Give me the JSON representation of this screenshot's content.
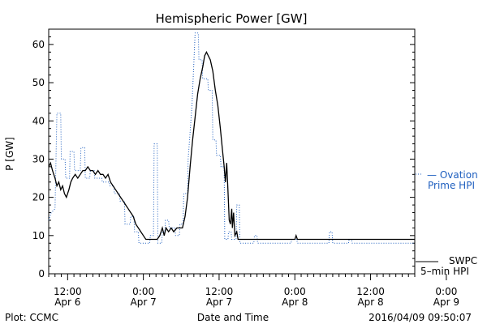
{
  "chart_data": {
    "type": "line",
    "title": "Hemispheric Power [GW]",
    "ylabel": "P [GW]",
    "xlabel": "Date and Time",
    "ylim": [
      0,
      64
    ],
    "yticks": [
      0,
      10,
      20,
      30,
      40,
      50,
      60
    ],
    "x_unit": "hours since 2016-04-06 00:00 UT",
    "xlim": [
      9.0,
      67.0
    ],
    "xticks": [
      {
        "x": 12,
        "line1": "12:00",
        "line2": "Apr 6"
      },
      {
        "x": 24,
        "line1": "0:00",
        "line2": "Apr 7"
      },
      {
        "x": 36,
        "line1": "12:00",
        "line2": "Apr 7"
      },
      {
        "x": 48,
        "line1": "0:00",
        "line2": "Apr 8"
      },
      {
        "x": 60,
        "line1": "12:00",
        "line2": "Apr 8"
      },
      {
        "x": 72,
        "line1": "0:00",
        "line2": "Apr 9"
      }
    ],
    "grid": false,
    "series": [
      {
        "name": "Ovation Prime HPI",
        "legend_line1": "— Ovation",
        "legend_line2": "Prime HPI",
        "color": "#1f5fbf",
        "style": "dotted-step",
        "points": [
          [
            9.0,
            14
          ],
          [
            9.4,
            16
          ],
          [
            10.0,
            17
          ],
          [
            10.3,
            42
          ],
          [
            10.9,
            42
          ],
          [
            11.0,
            30
          ],
          [
            11.6,
            30
          ],
          [
            11.7,
            25
          ],
          [
            12.3,
            25
          ],
          [
            12.4,
            32
          ],
          [
            13.0,
            32
          ],
          [
            13.1,
            27
          ],
          [
            14.0,
            27
          ],
          [
            14.1,
            33
          ],
          [
            14.7,
            33
          ],
          [
            14.8,
            25
          ],
          [
            15.5,
            25
          ],
          [
            15.6,
            27
          ],
          [
            16.2,
            27
          ],
          [
            16.3,
            25
          ],
          [
            17.4,
            25
          ],
          [
            17.5,
            24
          ],
          [
            18.6,
            24
          ],
          [
            18.7,
            23
          ],
          [
            19.3,
            23
          ],
          [
            19.4,
            21
          ],
          [
            20.2,
            21
          ],
          [
            20.3,
            19
          ],
          [
            21.0,
            19
          ],
          [
            21.1,
            13
          ],
          [
            21.9,
            13
          ],
          [
            22.0,
            15
          ],
          [
            22.5,
            15
          ],
          [
            22.6,
            11
          ],
          [
            23.2,
            11
          ],
          [
            23.3,
            8
          ],
          [
            25.0,
            8
          ],
          [
            25.1,
            10
          ],
          [
            25.6,
            10
          ],
          [
            25.7,
            34
          ],
          [
            26.2,
            34
          ],
          [
            26.3,
            8
          ],
          [
            26.9,
            8
          ],
          [
            27.0,
            11
          ],
          [
            27.4,
            11
          ],
          [
            27.5,
            14
          ],
          [
            28.0,
            14
          ],
          [
            28.1,
            12
          ],
          [
            29.0,
            12
          ],
          [
            29.1,
            10
          ],
          [
            29.7,
            10
          ],
          [
            29.8,
            13
          ],
          [
            30.3,
            13
          ],
          [
            30.4,
            21
          ],
          [
            31.0,
            21
          ],
          [
            31.1,
            30
          ],
          [
            31.4,
            37
          ],
          [
            31.7,
            44
          ],
          [
            32.0,
            55
          ],
          [
            32.2,
            63
          ],
          [
            32.7,
            63
          ],
          [
            32.8,
            56
          ],
          [
            33.3,
            56
          ],
          [
            33.4,
            51
          ],
          [
            34.2,
            51
          ],
          [
            34.3,
            48
          ],
          [
            34.9,
            48
          ],
          [
            35.0,
            35
          ],
          [
            35.5,
            35
          ],
          [
            35.6,
            31
          ],
          [
            36.2,
            31
          ],
          [
            36.3,
            28
          ],
          [
            36.8,
            28
          ],
          [
            36.9,
            9
          ],
          [
            37.4,
            9
          ],
          [
            37.5,
            11
          ],
          [
            37.9,
            11
          ],
          [
            38.0,
            9
          ],
          [
            38.7,
            9
          ],
          [
            38.8,
            18
          ],
          [
            39.2,
            18
          ],
          [
            39.3,
            8
          ],
          [
            41.5,
            8
          ],
          [
            41.6,
            10
          ],
          [
            42.0,
            10
          ],
          [
            42.1,
            8
          ],
          [
            47.4,
            8
          ],
          [
            47.5,
            9
          ],
          [
            48.3,
            9
          ],
          [
            48.4,
            8
          ],
          [
            53.4,
            8
          ],
          [
            53.5,
            11
          ],
          [
            53.9,
            11
          ],
          [
            54.0,
            8
          ],
          [
            56.5,
            8
          ],
          [
            56.6,
            9
          ],
          [
            57.0,
            9
          ],
          [
            57.1,
            8
          ],
          [
            67.0,
            8
          ]
        ]
      },
      {
        "name": "SWPC 5-min HPI",
        "legend_line1": "SWPC",
        "legend_line2": "5–min HPI",
        "color": "#000000",
        "style": "solid",
        "points": [
          [
            9.0,
            28
          ],
          [
            9.3,
            29
          ],
          [
            9.6,
            27
          ],
          [
            10.0,
            25
          ],
          [
            10.3,
            23
          ],
          [
            10.6,
            24
          ],
          [
            10.9,
            22
          ],
          [
            11.2,
            23
          ],
          [
            11.5,
            21
          ],
          [
            11.8,
            20
          ],
          [
            12.2,
            22
          ],
          [
            12.5,
            24
          ],
          [
            12.8,
            25
          ],
          [
            13.2,
            26
          ],
          [
            13.6,
            25
          ],
          [
            14.0,
            26
          ],
          [
            14.4,
            27
          ],
          [
            14.8,
            27
          ],
          [
            15.2,
            28
          ],
          [
            15.6,
            27
          ],
          [
            16.0,
            27
          ],
          [
            16.4,
            26
          ],
          [
            16.8,
            27
          ],
          [
            17.2,
            26
          ],
          [
            17.6,
            26
          ],
          [
            18.0,
            25
          ],
          [
            18.4,
            26
          ],
          [
            18.8,
            24
          ],
          [
            19.2,
            23
          ],
          [
            19.6,
            22
          ],
          [
            20.0,
            21
          ],
          [
            20.4,
            20
          ],
          [
            20.8,
            19
          ],
          [
            21.2,
            18
          ],
          [
            21.6,
            17
          ],
          [
            22.0,
            16
          ],
          [
            22.4,
            15
          ],
          [
            22.8,
            13
          ],
          [
            23.2,
            12
          ],
          [
            23.6,
            11
          ],
          [
            24.0,
            10
          ],
          [
            24.4,
            9
          ],
          [
            25.0,
            9
          ],
          [
            25.6,
            9
          ],
          [
            26.2,
            9
          ],
          [
            26.6,
            10
          ],
          [
            27.0,
            12
          ],
          [
            27.3,
            10
          ],
          [
            27.6,
            12
          ],
          [
            28.0,
            11
          ],
          [
            28.4,
            12
          ],
          [
            28.8,
            11
          ],
          [
            29.3,
            12
          ],
          [
            29.8,
            12
          ],
          [
            30.2,
            12
          ],
          [
            30.6,
            15
          ],
          [
            31.0,
            20
          ],
          [
            31.4,
            28
          ],
          [
            31.8,
            35
          ],
          [
            32.2,
            41
          ],
          [
            32.6,
            47
          ],
          [
            33.0,
            51
          ],
          [
            33.4,
            54
          ],
          [
            33.7,
            57
          ],
          [
            34.0,
            58
          ],
          [
            34.3,
            57
          ],
          [
            34.6,
            56
          ],
          [
            35.0,
            53
          ],
          [
            35.4,
            48
          ],
          [
            35.8,
            44
          ],
          [
            36.2,
            38
          ],
          [
            36.5,
            33
          ],
          [
            36.8,
            28
          ],
          [
            37.0,
            24
          ],
          [
            37.2,
            29
          ],
          [
            37.4,
            22
          ],
          [
            37.6,
            14
          ],
          [
            37.8,
            13
          ],
          [
            38.0,
            17
          ],
          [
            38.1,
            12
          ],
          [
            38.3,
            16
          ],
          [
            38.5,
            10
          ],
          [
            38.8,
            11
          ],
          [
            39.0,
            9
          ],
          [
            39.5,
            9
          ],
          [
            40.0,
            9
          ],
          [
            48.0,
            9
          ],
          [
            48.2,
            10
          ],
          [
            48.4,
            9
          ],
          [
            58.0,
            9
          ],
          [
            67.0,
            9
          ]
        ]
      }
    ]
  },
  "footer": {
    "left": "Plot: CCMC",
    "center": "Date and Time",
    "right": "2016/04/09 09:50:07"
  }
}
